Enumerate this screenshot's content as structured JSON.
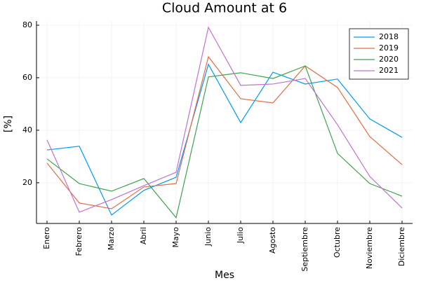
{
  "chart_data": {
    "type": "line",
    "title": "Cloud Amount at 6",
    "x_label": "Mes",
    "y_label": "[%]",
    "categories": [
      "Enero",
      "Febrero",
      "Marzo",
      "Abril",
      "Mayo",
      "Junio",
      "Julio",
      "Agosto",
      "Septiembre",
      "Octubre",
      "Noviembre",
      "Diciembre"
    ],
    "series": [
      {
        "name": "2018",
        "color": "#009af9",
        "values": [
          32.5,
          33.9,
          7.7,
          17.1,
          22.1,
          65.1,
          42.9,
          62.1,
          57.6,
          59.5,
          44.3,
          37.3
        ]
      },
      {
        "name": "2019",
        "color": "#e26f46",
        "values": [
          27.5,
          12.3,
          10.1,
          18.4,
          19.7,
          68.0,
          52.0,
          50.4,
          64.5,
          56.3,
          37.6,
          26.9
        ]
      },
      {
        "name": "2020",
        "color": "#3da44d",
        "values": [
          29.1,
          19.7,
          16.8,
          21.6,
          6.7,
          60.3,
          61.9,
          59.7,
          64.5,
          31.2,
          19.7,
          14.9
        ]
      },
      {
        "name": "2021",
        "color": "#c271d2",
        "values": [
          36.3,
          8.8,
          13.6,
          18.9,
          24.0,
          79.2,
          57.1,
          57.6,
          59.7,
          42.1,
          22.4,
          10.4
        ]
      }
    ],
    "ylim": [
      4.5,
      81.6
    ],
    "yticks": [
      20,
      40,
      60,
      80
    ],
    "grid": true,
    "legend": "top-right"
  }
}
